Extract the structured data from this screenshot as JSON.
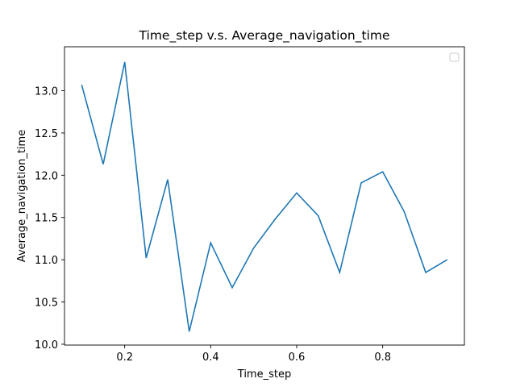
{
  "chart_data": {
    "type": "line",
    "title": "Time_step v.s. Average_navigation_time",
    "xlabel": "Time_step",
    "ylabel": "Average_navigation_time",
    "xlim": [
      0.06,
      0.99
    ],
    "ylim": [
      9.99,
      13.52
    ],
    "x_ticks": [
      0.2,
      0.4,
      0.6,
      0.8
    ],
    "x_tick_labels": [
      "0.2",
      "0.4",
      "0.6",
      "0.8"
    ],
    "y_ticks": [
      10.0,
      10.5,
      11.0,
      11.5,
      12.0,
      12.5,
      13.0
    ],
    "y_tick_labels": [
      "10.0",
      "10.5",
      "11.0",
      "11.5",
      "12.0",
      "12.5",
      "13.0"
    ],
    "grid": false,
    "legend": {
      "placement": "upper right",
      "entries": []
    },
    "series": [
      {
        "color": "#1f77b4",
        "x": [
          0.1,
          0.15,
          0.2,
          0.25,
          0.3,
          0.35,
          0.4,
          0.45,
          0.5,
          0.55,
          0.6,
          0.65,
          0.7,
          0.75,
          0.8,
          0.85,
          0.9,
          0.95
        ],
        "y": [
          13.07,
          12.13,
          13.34,
          11.02,
          11.95,
          10.15,
          11.2,
          10.67,
          11.14,
          11.48,
          11.79,
          11.52,
          10.85,
          11.91,
          12.04,
          11.57,
          10.85,
          11.0
        ]
      }
    ]
  }
}
